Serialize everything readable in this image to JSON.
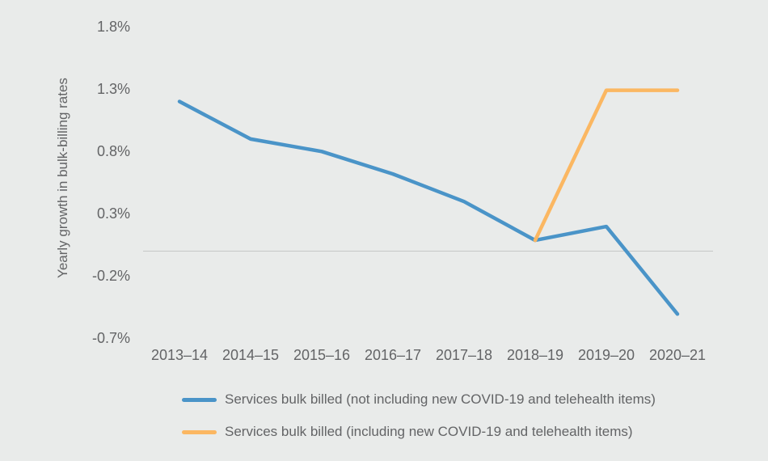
{
  "colors": {
    "background": "#E9EBEA",
    "text": "#636466",
    "zero_line": "#C5C7C6",
    "series_blue": "#4A94C8",
    "series_orange": "#FBB762"
  },
  "chart_data": {
    "type": "line",
    "title": "",
    "xlabel": "",
    "ylabel": "Yearly growth in bulk-billing rates",
    "categories": [
      "2013–14",
      "2014–15",
      "2015–16",
      "2016–17",
      "2017–18",
      "2018–19",
      "2019–20",
      "2020–21"
    ],
    "series": [
      {
        "name": "Services bulk billed (not including new COVID-19 and telehealth items)",
        "color": "#4A94C8",
        "values": [
          1.2,
          0.9,
          0.8,
          0.62,
          0.4,
          0.09,
          0.2,
          -0.5
        ]
      },
      {
        "name": "Services bulk billed (including new COVID-19 and telehealth items)",
        "color": "#FBB762",
        "values": [
          null,
          null,
          null,
          null,
          null,
          0.09,
          1.29,
          1.29
        ]
      }
    ],
    "ytick_labels": [
      "1.8%",
      "1.3%",
      "0.8%",
      "0.3%",
      "-0.2%",
      "-0.7%"
    ],
    "ytick_values": [
      1.8,
      1.3,
      0.8,
      0.3,
      -0.2,
      -0.7
    ],
    "ylim": [
      -0.95,
      1.95
    ],
    "grid": false,
    "zero_line": true,
    "markers": false,
    "legend_position": "bottom-left"
  }
}
